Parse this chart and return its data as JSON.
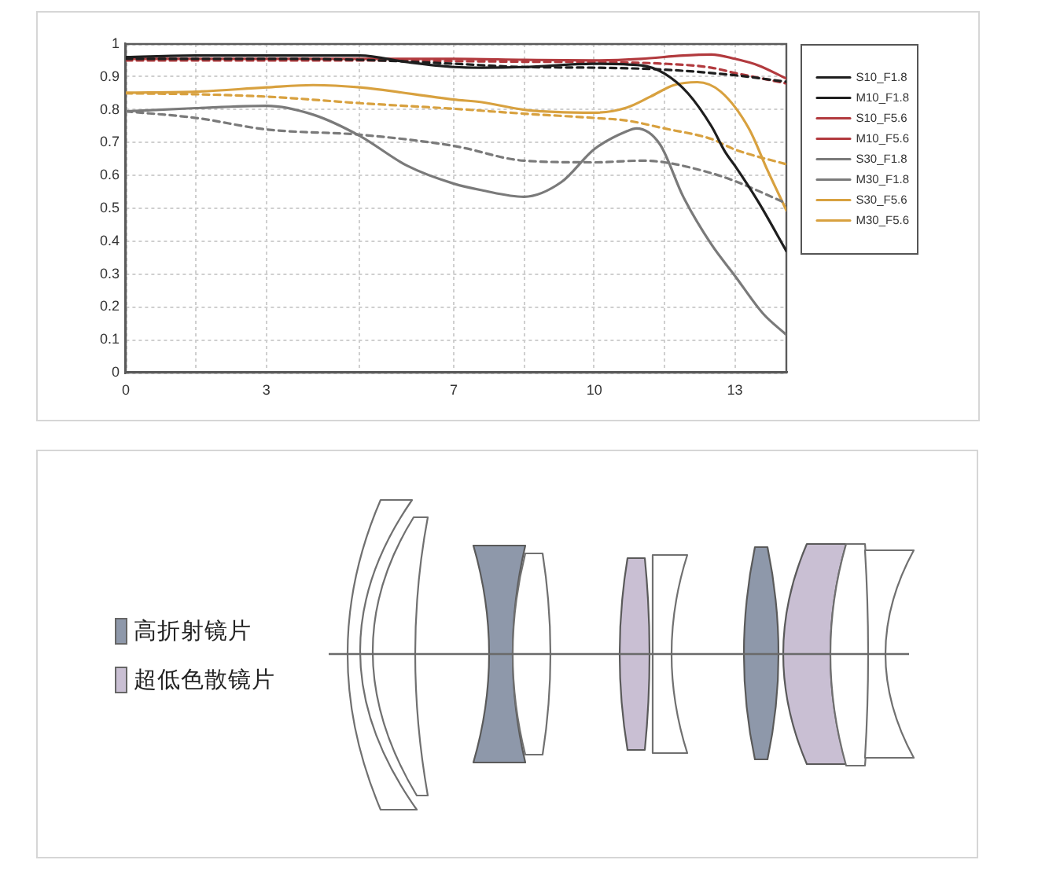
{
  "chart_data": [
    {
      "type": "line",
      "xlim": [
        0,
        14.1
      ],
      "xticks": [
        0,
        {
          "value": 1.5,
          "label": null
        },
        3,
        {
          "value": 5,
          "label": null
        },
        7,
        {
          "value": 8.5,
          "label": null
        },
        10,
        {
          "value": 11.5,
          "label": null
        },
        13
      ],
      "ylim": [
        0,
        1
      ],
      "yticks": [
        0,
        0.1,
        0.2,
        0.3,
        0.4,
        0.5,
        0.6,
        0.7,
        0.8,
        0.9,
        1
      ],
      "grid": true,
      "legend": "top right",
      "marker": "none",
      "line_style": "solid",
      "series": [
        {
          "name": "S10_F1.8",
          "color": "#1e1e1e",
          "x": [
            0,
            1.5,
            3,
            5,
            6,
            7,
            7.6,
            8.5,
            10,
            11,
            11.5,
            12,
            12.5,
            12.8,
            13,
            13.5,
            14.1
          ],
          "values": [
            0.96,
            0.965,
            0.965,
            0.965,
            0.945,
            0.93,
            0.928,
            0.93,
            0.94,
            0.935,
            0.91,
            0.85,
            0.75,
            0.67,
            0.63,
            0.52,
            0.37
          ]
        },
        {
          "name": "M10_F1.8",
          "color": "#1e1e1e",
          "line_style": "dashed",
          "x": [
            0,
            3,
            5,
            7,
            8.5,
            10,
            11.5,
            13,
            14.1
          ],
          "values": [
            0.955,
            0.955,
            0.952,
            0.94,
            0.93,
            0.928,
            0.922,
            0.905,
            0.885
          ]
        },
        {
          "name": "S10_F5.6",
          "color": "#b23a3e",
          "x": [
            0,
            3,
            5,
            7,
            8.5,
            10,
            11,
            11.9,
            12.5,
            13,
            13.5,
            14.1
          ],
          "values": [
            0.955,
            0.955,
            0.955,
            0.955,
            0.952,
            0.95,
            0.955,
            0.965,
            0.968,
            0.955,
            0.935,
            0.895
          ]
        },
        {
          "name": "M10_F5.6",
          "color": "#b23a3e",
          "line_style": "dashed",
          "x": [
            0,
            3,
            5,
            7,
            8.5,
            10,
            11.5,
            12.5,
            13,
            14.1
          ],
          "values": [
            0.95,
            0.95,
            0.95,
            0.948,
            0.946,
            0.945,
            0.94,
            0.928,
            0.912,
            0.88
          ]
        },
        {
          "name": "S30_F1.8",
          "color": "#7a7a7a",
          "x": [
            0,
            1.5,
            3,
            4,
            5,
            6,
            7,
            7.6,
            8.5,
            9.3,
            10,
            10.7,
            10.9,
            11.4,
            11.9,
            12.5,
            13,
            13.6,
            14.1
          ],
          "values": [
            0.795,
            0.805,
            0.812,
            0.785,
            0.72,
            0.63,
            0.575,
            0.555,
            0.535,
            0.58,
            0.68,
            0.735,
            0.743,
            0.695,
            0.535,
            0.39,
            0.295,
            0.18,
            0.115
          ]
        },
        {
          "name": "M30_F1.8",
          "color": "#7a7a7a",
          "line_style": "dashed",
          "x": [
            0,
            1.5,
            3,
            5,
            7,
            8.5,
            10,
            11,
            11.5,
            12.5,
            13,
            14.1
          ],
          "values": [
            0.795,
            0.775,
            0.74,
            0.724,
            0.69,
            0.645,
            0.64,
            0.645,
            0.64,
            0.607,
            0.583,
            0.515
          ]
        },
        {
          "name": "S30_F5.6",
          "color": "#d8a13f",
          "x": [
            0,
            1.5,
            3,
            4,
            5,
            7,
            7.6,
            8.5,
            10,
            10.7,
            11.2,
            11.7,
            12.2,
            12.7,
            13.3,
            13.7,
            14.1
          ],
          "values": [
            0.852,
            0.855,
            0.868,
            0.875,
            0.868,
            0.831,
            0.823,
            0.8,
            0.791,
            0.807,
            0.84,
            0.875,
            0.884,
            0.855,
            0.743,
            0.615,
            0.494
          ]
        },
        {
          "name": "M30_F5.6",
          "color": "#d8a13f",
          "line_style": "dashed",
          "x": [
            0,
            1.5,
            3,
            5,
            7,
            8.5,
            10,
            10.7,
            11.5,
            12.5,
            13,
            14.1
          ],
          "values": [
            0.85,
            0.847,
            0.84,
            0.82,
            0.803,
            0.788,
            0.775,
            0.767,
            0.743,
            0.711,
            0.679,
            0.634
          ]
        }
      ]
    },
    {
      "type": "other",
      "annotations": [
        "高折射镜片",
        "超低色散镜片"
      ]
    }
  ]
}
